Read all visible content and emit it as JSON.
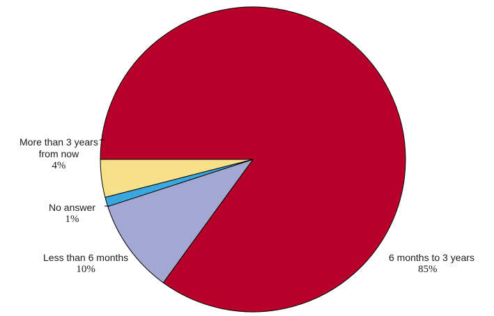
{
  "chart_data": {
    "type": "pie",
    "title": "",
    "start_angle_deg": 180,
    "direction": "clockwise",
    "slices": [
      {
        "label": [
          "6 months to 3 years"
        ],
        "value": 85,
        "value_label": "85%",
        "color": "#b8002a"
      },
      {
        "label": [
          "Less than 6 months"
        ],
        "value": 10,
        "value_label": "10%",
        "color": "#a3a8d2"
      },
      {
        "label": [
          "No answer"
        ],
        "value": 1,
        "value_label": "1%",
        "color": "#3aa7e0"
      },
      {
        "label": [
          "More than 3 years",
          "from now"
        ],
        "value": 4,
        "value_label": "4%",
        "color": "#f6e08a"
      }
    ]
  }
}
